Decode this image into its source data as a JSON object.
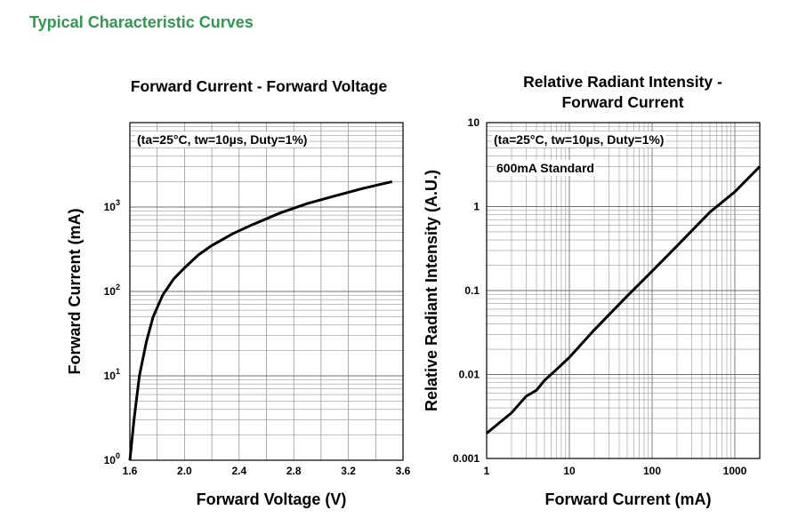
{
  "page_title": "Typical Characteristic Curves",
  "chart_data": [
    {
      "type": "line",
      "title": "Forward Current - Forward Voltage",
      "xlabel": "Forward Voltage (V)",
      "ylabel": "Forward Current (mA)",
      "annotation": "(ta=25°C, tw=10µs, Duty=1%)",
      "x_scale": "linear",
      "y_scale": "log",
      "xlim": [
        1.6,
        3.6
      ],
      "ylim": [
        1,
        10000
      ],
      "x_ticks": [
        "1.6",
        "2.0",
        "2.4",
        "2.8",
        "3.2",
        "3.6"
      ],
      "y_ticks": [
        {
          "base": "10",
          "exp": "0"
        },
        {
          "base": "10",
          "exp": "1"
        },
        {
          "base": "10",
          "exp": "2"
        },
        {
          "base": "10",
          "exp": "3"
        }
      ],
      "series": [
        {
          "x": [
            1.6,
            1.63,
            1.67,
            1.72,
            1.77,
            1.84,
            1.92,
            2.0,
            2.1,
            2.2,
            2.35,
            2.5,
            2.7,
            2.9,
            3.1,
            3.3,
            3.52
          ],
          "y": [
            1,
            3,
            10,
            25,
            50,
            90,
            140,
            190,
            270,
            350,
            480,
            620,
            850,
            1100,
            1350,
            1650,
            2000
          ]
        }
      ],
      "grid": true,
      "color": "#000000"
    },
    {
      "type": "line",
      "title": "Relative Radiant Intensity - Forward Current",
      "xlabel": "Forward Current (mA)",
      "ylabel": "Relative Radiant Intensity (A.U.)",
      "annotations": [
        "(ta=25°C, tw=10µs, Duty=1%)",
        "600mA Standard"
      ],
      "x_scale": "log",
      "y_scale": "log",
      "xlim": [
        1,
        2000
      ],
      "ylim": [
        0.001,
        10
      ],
      "x_ticks": [
        "1",
        "10",
        "100",
        "1000"
      ],
      "y_ticks": [
        "0.001",
        "0.01",
        "0.1",
        "1",
        "10"
      ],
      "series": [
        {
          "x": [
            1,
            2,
            3,
            4,
            5,
            7,
            10,
            20,
            50,
            100,
            200,
            500,
            1000,
            2000
          ],
          "y": [
            0.002,
            0.0035,
            0.0055,
            0.0065,
            0.0085,
            0.0115,
            0.016,
            0.034,
            0.086,
            0.17,
            0.34,
            0.86,
            1.5,
            3.0
          ]
        }
      ],
      "grid": true,
      "color": "#000000"
    }
  ]
}
